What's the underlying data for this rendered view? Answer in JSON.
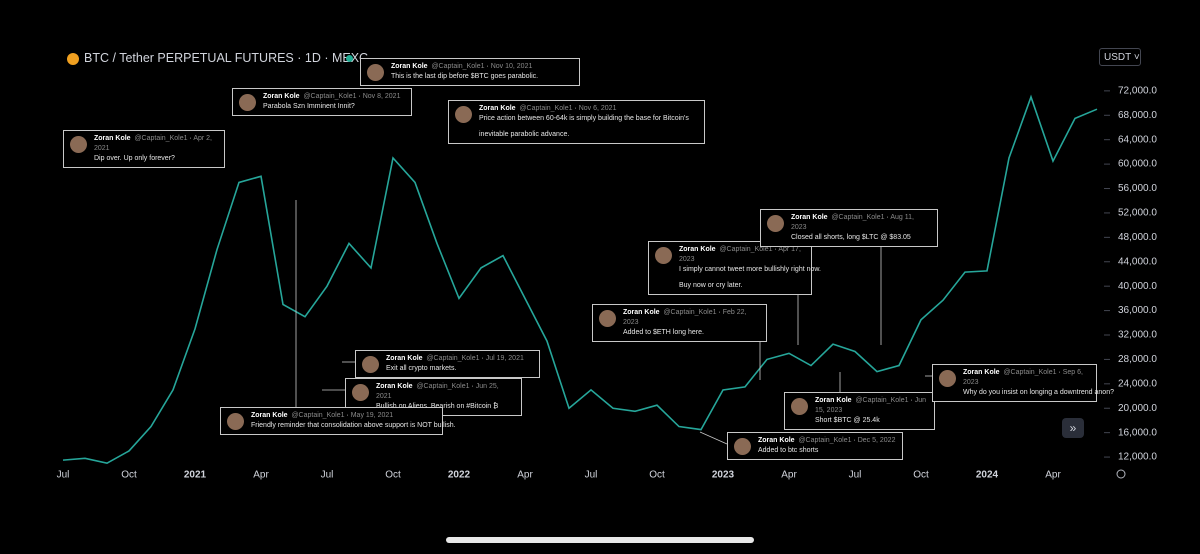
{
  "header": {
    "title": "BTC / Tether PERPETUAL FUTURES · 1D · MEXC",
    "currency": "USDT"
  },
  "chart_data": {
    "type": "line",
    "categories": [
      "Jul",
      null,
      null,
      "Oct",
      null,
      null,
      "2021",
      null,
      null,
      "Apr",
      null,
      null,
      "Jul",
      null,
      null,
      "Oct",
      null,
      null,
      "2022",
      null,
      null,
      "Apr",
      null,
      null,
      "Jul",
      null,
      null,
      "Oct",
      null,
      null,
      "2023",
      null,
      null,
      "Apr",
      null,
      null,
      "Jul",
      null,
      null,
      "Oct",
      null,
      null,
      "2024",
      null,
      null,
      "Apr",
      null,
      null
    ],
    "series": [
      {
        "name": "BTC / Tether",
        "color": "#26a69a",
        "values": [
          11500,
          11800,
          11000,
          13000,
          17000,
          23000,
          33000,
          46000,
          57000,
          58000,
          37000,
          35000,
          40000,
          47000,
          43000,
          61000,
          57000,
          47000,
          38000,
          43000,
          45000,
          38000,
          31000,
          20000,
          23000,
          20000,
          19500,
          20500,
          17000,
          16500,
          23000,
          23500,
          28000,
          29000,
          27000,
          30500,
          29300,
          26000,
          27000,
          34500,
          37700,
          42300,
          42500,
          61000,
          71000,
          60500,
          67500,
          69000
        ]
      }
    ],
    "ylim": [
      10700,
      74600
    ],
    "yticks": [
      {
        "value": 12000,
        "label": "12,000.0"
      },
      {
        "value": 16000,
        "label": "16,000.0"
      },
      {
        "value": 20000,
        "label": "20,000.0"
      },
      {
        "value": 24000,
        "label": "24,000.0"
      },
      {
        "value": 28000,
        "label": "28,000.0"
      },
      {
        "value": 32000,
        "label": "32,000.0"
      },
      {
        "value": 36000,
        "label": "36,000.0"
      },
      {
        "value": 40000,
        "label": "40,000.0"
      },
      {
        "value": 44000,
        "label": "44,000.0"
      },
      {
        "value": 48000,
        "label": "48,000.0"
      },
      {
        "value": 52000,
        "label": "52,000.0"
      },
      {
        "value": 56000,
        "label": "56,000.0"
      },
      {
        "value": 60000,
        "label": "60,000.0"
      },
      {
        "value": 64000,
        "label": "64,000.0"
      },
      {
        "value": 68000,
        "label": "68,000.0"
      },
      {
        "value": 72000,
        "label": "72,000.0"
      }
    ],
    "grid": false
  },
  "annotations": {
    "author": "Zoran Kole",
    "handle": "@Captain_Kole1",
    "items": [
      {
        "date": "Apr 2, 2021",
        "lines": [
          "Dip over. Up only forever?"
        ]
      },
      {
        "date": "Nov 8, 2021",
        "lines": [
          "Parabola Szn Imminent Innit?"
        ]
      },
      {
        "date": "Nov 10, 2021",
        "lines": [
          "This is the last dip before $BTC goes parabolic."
        ]
      },
      {
        "date": "Nov 6, 2021",
        "lines": [
          "Price action between 60-64k is simply building the base for Bitcoin's",
          "inevitable parabolic advance."
        ]
      },
      {
        "date": "Jul 19, 2021",
        "lines": [
          "Exit all crypto markets."
        ]
      },
      {
        "date": "Jun 25, 2021",
        "lines": [
          "Bullish on Aliens, Bearish on #Bitcoin ₿"
        ]
      },
      {
        "date": "May 19, 2021",
        "lines": [
          "Friendly reminder that consolidation above support is NOT bullish."
        ]
      },
      {
        "date": "Feb 22, 2023",
        "lines": [
          "Added to $ETH long here."
        ]
      },
      {
        "date": "Apr 17, 2023",
        "lines": [
          "I simply cannot tweet more bullishly right now.",
          "Buy now or cry later."
        ]
      },
      {
        "date": "Aug 11, 2023",
        "lines": [
          "Closed all shorts, long $LTC @ $83.05"
        ]
      },
      {
        "date": "Jun 15, 2023",
        "lines": [
          "Short $BTC @ 25.4k"
        ]
      },
      {
        "date": "Dec 5, 2022",
        "lines": [
          "Added to btc shorts"
        ]
      },
      {
        "date": "Sep 6, 2023",
        "lines": [
          "Why do you insist on longing a downtrend anon?"
        ]
      }
    ]
  }
}
